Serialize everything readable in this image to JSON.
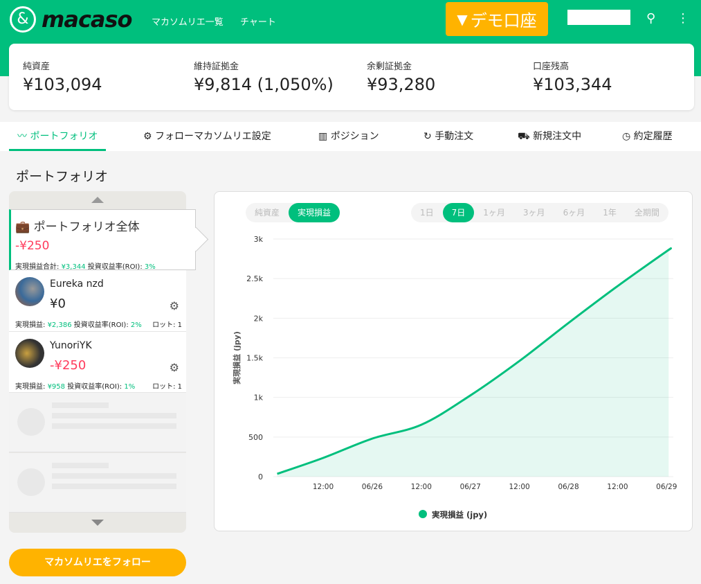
{
  "header": {
    "logo": "macaso",
    "nav": [
      "マカソムリエ一覧",
      "チャート"
    ],
    "demo_label": "デモ口座",
    "icons": [
      "user-icon",
      "more-vert-icon"
    ]
  },
  "summary": [
    {
      "label": "純資産",
      "value": "¥103,094"
    },
    {
      "label": "維持証拠金",
      "value": "¥9,814 (1,050%)"
    },
    {
      "label": "余剰証拠金",
      "value": "¥93,280"
    },
    {
      "label": "口座残高",
      "value": "¥103,344"
    }
  ],
  "tabs": [
    {
      "label": "ポートフォリオ",
      "icon": "trend-icon",
      "active": true
    },
    {
      "label": "フォローマカソムリエ設定",
      "icon": "gear-icon"
    },
    {
      "label": "ポジション",
      "icon": "bar-chart-icon"
    },
    {
      "label": "手動注文",
      "icon": "refresh-icon"
    },
    {
      "label": "新規注文中",
      "icon": "cart-icon"
    },
    {
      "label": "約定履歴",
      "icon": "clock-icon"
    }
  ],
  "page_title": "ポートフォリオ",
  "portfolio_total": {
    "title": "ポートフォリオ全体",
    "value": "-¥250",
    "realized_label": "実現損益合計:",
    "realized": "¥3,344",
    "roi_label": "投資収益率(ROI):",
    "roi": "3%"
  },
  "sommeliers": [
    {
      "name": "Eureka nzd",
      "value": "¥0",
      "realized_label": "実現損益:",
      "realized": "¥2,386",
      "roi_label": "投資収益率(ROI):",
      "roi": "2%",
      "lot": "ロット: 1"
    },
    {
      "name": "YunoriYK",
      "value": "-¥250",
      "realized_label": "実現損益:",
      "realized": "¥958",
      "roi_label": "投資収益率(ROI):",
      "roi": "1%",
      "lot": "ロット: 1"
    }
  ],
  "follow_button": "マカソムリエをフォロー",
  "chart_toggle": [
    "純資産",
    "実現損益"
  ],
  "chart_toggle_selected": "実現損益",
  "ranges": [
    "1日",
    "7日",
    "1ヶ月",
    "3ヶ月",
    "6ヶ月",
    "1年",
    "全期間"
  ],
  "range_selected": "7日",
  "colors": {
    "accent": "#00bf7d",
    "negative": "#ff3b5c",
    "button": "#ffb300"
  },
  "chart_data": {
    "type": "area",
    "ylabel": "実現損益 (jpy)",
    "ylim": [
      0,
      3000
    ],
    "yticks": [
      "0",
      "500",
      "1k",
      "1.5k",
      "2k",
      "2.5k",
      "3k"
    ],
    "xticks": [
      "12:00",
      "06/26",
      "12:00",
      "06/27",
      "12:00",
      "06/28",
      "12:00",
      "06/29"
    ],
    "grid": true,
    "legend_position": "bottom",
    "series": [
      {
        "name": "実現損益 (jpy)",
        "x": [
          "06/25 00:45",
          "06/25 12:00",
          "06/26 00:00",
          "06/26 12:00",
          "06/27 00:00",
          "06/27 12:00",
          "06/28 00:00",
          "06/28 12:00",
          "06/29 00:00",
          "06/29 00:30"
        ],
        "values": [
          35,
          236,
          480,
          655,
          1025,
          1460,
          1940,
          2405,
          2845,
          2860
        ]
      }
    ]
  }
}
